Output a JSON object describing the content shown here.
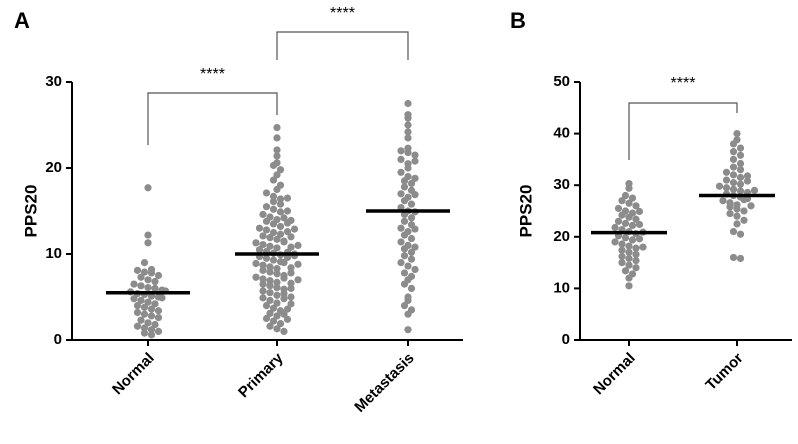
{
  "chart_data": [
    {
      "type": "dot",
      "panel_label": "A",
      "ylabel": "PPS20",
      "categories": [
        "Normal",
        "Primary",
        "Metastasis"
      ],
      "values": [
        [
          17.7,
          12.2,
          11.3,
          9.0,
          8.2,
          8.1,
          7.9,
          7.8,
          7.5,
          7.3,
          7.0,
          6.8,
          6.5,
          6.3,
          6.1,
          6.0,
          5.8,
          5.6,
          5.4,
          5.3,
          5.1,
          5.0,
          4.8,
          4.6,
          4.4,
          4.2,
          4.0,
          3.8,
          3.6,
          3.4,
          3.2,
          3.0,
          2.8,
          2.6,
          2.3,
          2.0,
          1.8,
          1.6,
          1.4,
          1.2,
          1.0,
          0.8,
          0.6,
          4.9,
          5.7
        ],
        [
          24.7,
          23.5,
          22.1,
          21.4,
          20.6,
          20.3,
          19.8,
          19.2,
          18.6,
          18.0,
          17.5,
          17.1,
          16.7,
          16.4,
          16.1,
          15.8,
          15.5,
          15.2,
          14.9,
          14.6,
          14.3,
          14.0,
          13.8,
          13.5,
          13.2,
          13.0,
          12.8,
          12.5,
          12.3,
          12.1,
          11.9,
          11.7,
          11.5,
          11.3,
          11.1,
          10.9,
          10.7,
          10.5,
          10.3,
          10.1,
          9.9,
          9.7,
          9.5,
          9.3,
          9.1,
          8.9,
          8.7,
          8.5,
          8.3,
          8.1,
          7.9,
          7.7,
          7.5,
          7.3,
          7.1,
          6.9,
          6.7,
          6.5,
          6.3,
          6.1,
          5.9,
          5.7,
          5.5,
          5.2,
          4.9,
          4.6,
          4.3,
          4.0,
          3.7,
          3.4,
          3.1,
          2.8,
          2.5,
          2.2,
          1.9,
          1.6,
          1.3,
          1.0,
          16.5,
          15.0,
          14.2,
          13.6,
          12.6,
          12.0,
          11.4,
          10.8,
          10.2,
          9.6,
          9.0,
          8.4,
          7.8,
          7.2,
          6.6,
          6.0,
          5.4,
          4.8,
          4.2,
          3.6,
          3.0,
          2.4,
          10.0,
          9.8,
          11.0,
          8.8,
          7.0,
          12.9,
          13.9,
          5.0
        ],
        [
          27.5,
          26.2,
          25.8,
          25.0,
          24.2,
          23.5,
          22.3,
          22.0,
          21.8,
          21.5,
          21.0,
          20.5,
          20.0,
          19.5,
          19.0,
          18.5,
          18.2,
          17.8,
          17.4,
          17.0,
          16.6,
          16.2,
          15.8,
          15.4,
          15.0,
          14.6,
          14.2,
          13.8,
          13.4,
          13.0,
          12.6,
          12.2,
          11.8,
          11.4,
          11.0,
          10.6,
          10.2,
          9.8,
          9.4,
          9.0,
          8.6,
          8.2,
          7.8,
          7.4,
          7.0,
          6.5,
          6.0,
          5.0,
          4.6,
          4.0,
          3.5,
          3.0,
          1.2,
          20.8,
          18.8,
          16.9,
          14.9,
          12.9,
          10.8
        ]
      ],
      "means": [
        5.5,
        10.0,
        15.0
      ],
      "color": "#8c8c8c",
      "ylim": [
        0,
        30
      ],
      "yticks": [
        0,
        10,
        20,
        30
      ],
      "annotations": [
        {
          "label": "****"
        },
        {
          "label": "****"
        }
      ]
    },
    {
      "type": "dot",
      "panel_label": "B",
      "ylabel": "PPS20",
      "categories": [
        "Normal",
        "Tumor"
      ],
      "values": [
        [
          30.3,
          29.4,
          28.0,
          27.5,
          27.0,
          26.5,
          26.0,
          25.5,
          25.0,
          24.6,
          24.2,
          23.8,
          23.4,
          23.0,
          22.6,
          22.2,
          21.8,
          21.4,
          21.0,
          20.6,
          20.2,
          19.8,
          19.4,
          19.0,
          18.6,
          18.2,
          17.8,
          17.4,
          17.0,
          16.6,
          16.2,
          15.8,
          15.4,
          15.0,
          14.5,
          14.0,
          13.4,
          12.8,
          12.0,
          10.5,
          22.4,
          20.9,
          19.6,
          24.9,
          18.0
        ],
        [
          40.0,
          38.8,
          38.0,
          37.2,
          36.5,
          35.8,
          35.0,
          34.2,
          33.5,
          33.0,
          32.5,
          32.0,
          31.5,
          31.0,
          30.5,
          30.2,
          29.8,
          29.5,
          29.2,
          28.9,
          28.6,
          28.3,
          28.0,
          27.7,
          27.4,
          27.0,
          26.6,
          26.2,
          25.8,
          25.4,
          25.0,
          24.5,
          24.0,
          23.2,
          22.5,
          21.0,
          20.5,
          16.0,
          15.8,
          30.8,
          29.0,
          27.2,
          26.0,
          31.8
        ]
      ],
      "means": [
        20.8,
        28.0
      ],
      "color": "#8c8c8c",
      "ylim": [
        0,
        50
      ],
      "yticks": [
        0,
        10,
        20,
        30,
        40,
        50
      ],
      "annotations": [
        {
          "label": "****"
        }
      ]
    }
  ]
}
